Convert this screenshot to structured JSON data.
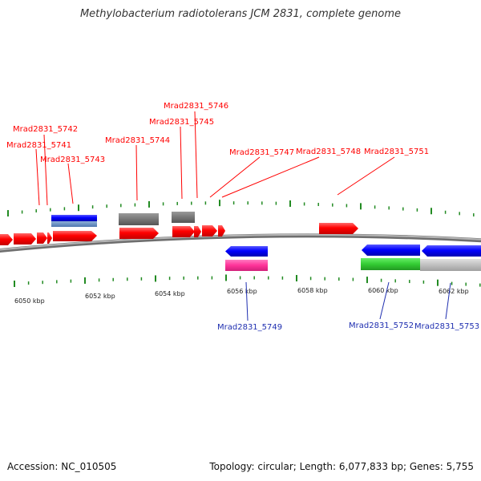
{
  "title": "Methylobacterium radiotolerans JCM 2831, complete genome",
  "footer": {
    "accession": "Accession: NC_010505",
    "topology": "Topology: circular; Length: 6,077,833 bp; Genes: 5,755"
  },
  "colors": {
    "backbone": "#8a8a8a",
    "forward_gene": "#ff0000",
    "reverse_gene": "#0000ff",
    "rna": "#c0c0c0",
    "pink": "#ff3399",
    "green": "#33cc33",
    "gray_feature": "#777777",
    "tick": "#228b22",
    "top_label": "#ff0000",
    "bottom_label": "#1f2fb0"
  },
  "scale": {
    "unit": "kbp",
    "tick_labels": [
      "6050 kbp",
      "6052 kbp",
      "6054 kbp",
      "6056 kbp",
      "6058 kbp",
      "6060 kbp",
      "6062 kbp"
    ]
  },
  "top_labels": [
    "Mrad2831_5742",
    "Mrad2831_5741",
    "Mrad2831_5743",
    "Mrad2831_5744",
    "Mrad2831_5746",
    "Mrad2831_5745",
    "Mrad2831_5747",
    "Mrad2831_5748",
    "Mrad2831_5751"
  ],
  "bottom_labels": [
    "Mrad2831_5749",
    "Mrad2831_5752",
    "Mrad2831_5753"
  ]
}
